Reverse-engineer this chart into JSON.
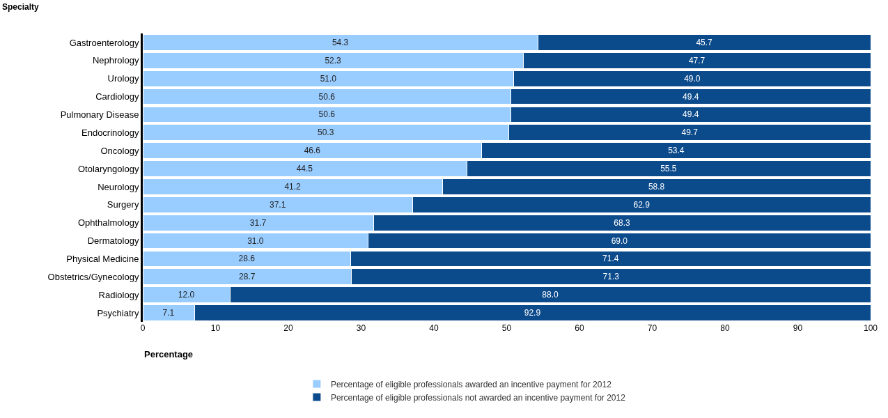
{
  "chart_data": {
    "type": "bar",
    "orientation": "horizontal",
    "stacked": true,
    "ylabel": "Specialty",
    "xlabel": "Percentage",
    "categories": [
      "Gastroenterology",
      "Nephrology",
      "Urology",
      "Cardiology",
      "Pulmonary Disease",
      "Endocrinology",
      "Oncology",
      "Otolaryngology",
      "Neurology",
      "Surgery",
      "Ophthalmology",
      "Dermatology",
      "Physical Medicine",
      "Obstetrics/Gynecology",
      "Radiology",
      "Psychiatry"
    ],
    "series": [
      {
        "name": "Percentage of eligible professionals awarded an incentive payment for 2012",
        "color": "#99ccff",
        "values": [
          54.3,
          52.3,
          51.0,
          50.6,
          50.6,
          50.3,
          46.6,
          44.5,
          41.2,
          37.1,
          31.7,
          31.0,
          28.6,
          28.7,
          12.0,
          7.1
        ],
        "value_labels": [
          "54.3",
          "52.3",
          "51.0",
          "50.6",
          "50.6",
          "50.3",
          "46.6",
          "44.5",
          "41.2",
          "37.1",
          "31.7",
          "31.0",
          "28.6",
          "28.7",
          "12.0",
          "7.1"
        ]
      },
      {
        "name": "Percentage of eligible professionals not awarded an incentive payment for 2012",
        "color": "#0b4a8b",
        "values": [
          45.7,
          47.7,
          49.0,
          49.4,
          49.4,
          49.7,
          53.4,
          55.5,
          58.8,
          62.9,
          68.3,
          69.0,
          71.4,
          71.3,
          88.0,
          92.9
        ],
        "value_labels": [
          "45.7",
          "47.7",
          "49.0",
          "49.4",
          "49.4",
          "49.7",
          "53.4",
          "55.5",
          "58.8",
          "62.9",
          "68.3",
          "69.0",
          "71.4",
          "71.3",
          "88.0",
          "92.9"
        ]
      }
    ],
    "xlim": [
      0,
      100
    ],
    "xticks": [
      0,
      10,
      20,
      30,
      40,
      50,
      60,
      70,
      80,
      90,
      100
    ],
    "legend": "bottom"
  }
}
